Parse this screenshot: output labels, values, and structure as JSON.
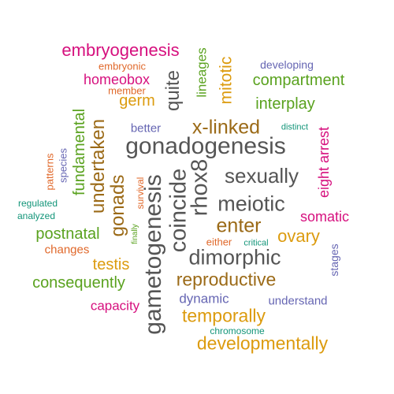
{
  "colors": {
    "magenta": "#d6107e",
    "orange": "#e0682a",
    "green": "#5aa21f",
    "olive": "#9b6a17",
    "gray": "#555555",
    "purple": "#6666b3",
    "gold": "#dc9b0e",
    "teal": "#139579"
  },
  "words": [
    {
      "text": "embryogenesis",
      "color": "magenta"
    },
    {
      "text": "embryonic",
      "color": "orange"
    },
    {
      "text": "developing",
      "color": "purple"
    },
    {
      "text": "homeobox",
      "color": "magenta"
    },
    {
      "text": "member",
      "color": "orange"
    },
    {
      "text": "compartment",
      "color": "green"
    },
    {
      "text": "germ",
      "color": "gold"
    },
    {
      "text": "quite",
      "color": "gray"
    },
    {
      "text": "lineages",
      "color": "green"
    },
    {
      "text": "mitotic",
      "color": "gold"
    },
    {
      "text": "interplay",
      "color": "green"
    },
    {
      "text": "fundamental",
      "color": "green"
    },
    {
      "text": "undertaken",
      "color": "olive"
    },
    {
      "text": "better",
      "color": "purple"
    },
    {
      "text": "x-linked",
      "color": "olive"
    },
    {
      "text": "distinct",
      "color": "teal"
    },
    {
      "text": "gonadogenesis",
      "color": "gray"
    },
    {
      "text": "eight arrest",
      "color": "magenta"
    },
    {
      "text": "patterns",
      "color": "orange"
    },
    {
      "text": "species",
      "color": "purple"
    },
    {
      "text": "regulated",
      "color": "teal"
    },
    {
      "text": "analyzed",
      "color": "teal"
    },
    {
      "text": "gonads",
      "color": "olive"
    },
    {
      "text": "survival",
      "color": "orange"
    },
    {
      "text": "gametogenesis",
      "color": "gray"
    },
    {
      "text": "coincide",
      "color": "gray"
    },
    {
      "text": "rhox8",
      "color": "gray"
    },
    {
      "text": "sexually",
      "color": "gray"
    },
    {
      "text": "meiotic",
      "color": "gray"
    },
    {
      "text": "somatic",
      "color": "magenta"
    },
    {
      "text": "postnatal",
      "color": "green"
    },
    {
      "text": "changes",
      "color": "orange"
    },
    {
      "text": "finally",
      "color": "green"
    },
    {
      "text": "enter",
      "color": "olive"
    },
    {
      "text": "either",
      "color": "orange"
    },
    {
      "text": "critical",
      "color": "teal"
    },
    {
      "text": "ovary",
      "color": "gold"
    },
    {
      "text": "testis",
      "color": "gold"
    },
    {
      "text": "dimorphic",
      "color": "gray"
    },
    {
      "text": "stages",
      "color": "purple"
    },
    {
      "text": "consequently",
      "color": "green"
    },
    {
      "text": "reproductive",
      "color": "olive"
    },
    {
      "text": "capacity",
      "color": "magenta"
    },
    {
      "text": "dynamic",
      "color": "purple"
    },
    {
      "text": "understand",
      "color": "purple"
    },
    {
      "text": "temporally",
      "color": "gold"
    },
    {
      "text": "chromosome",
      "color": "teal"
    },
    {
      "text": "developmentally",
      "color": "gold"
    }
  ]
}
